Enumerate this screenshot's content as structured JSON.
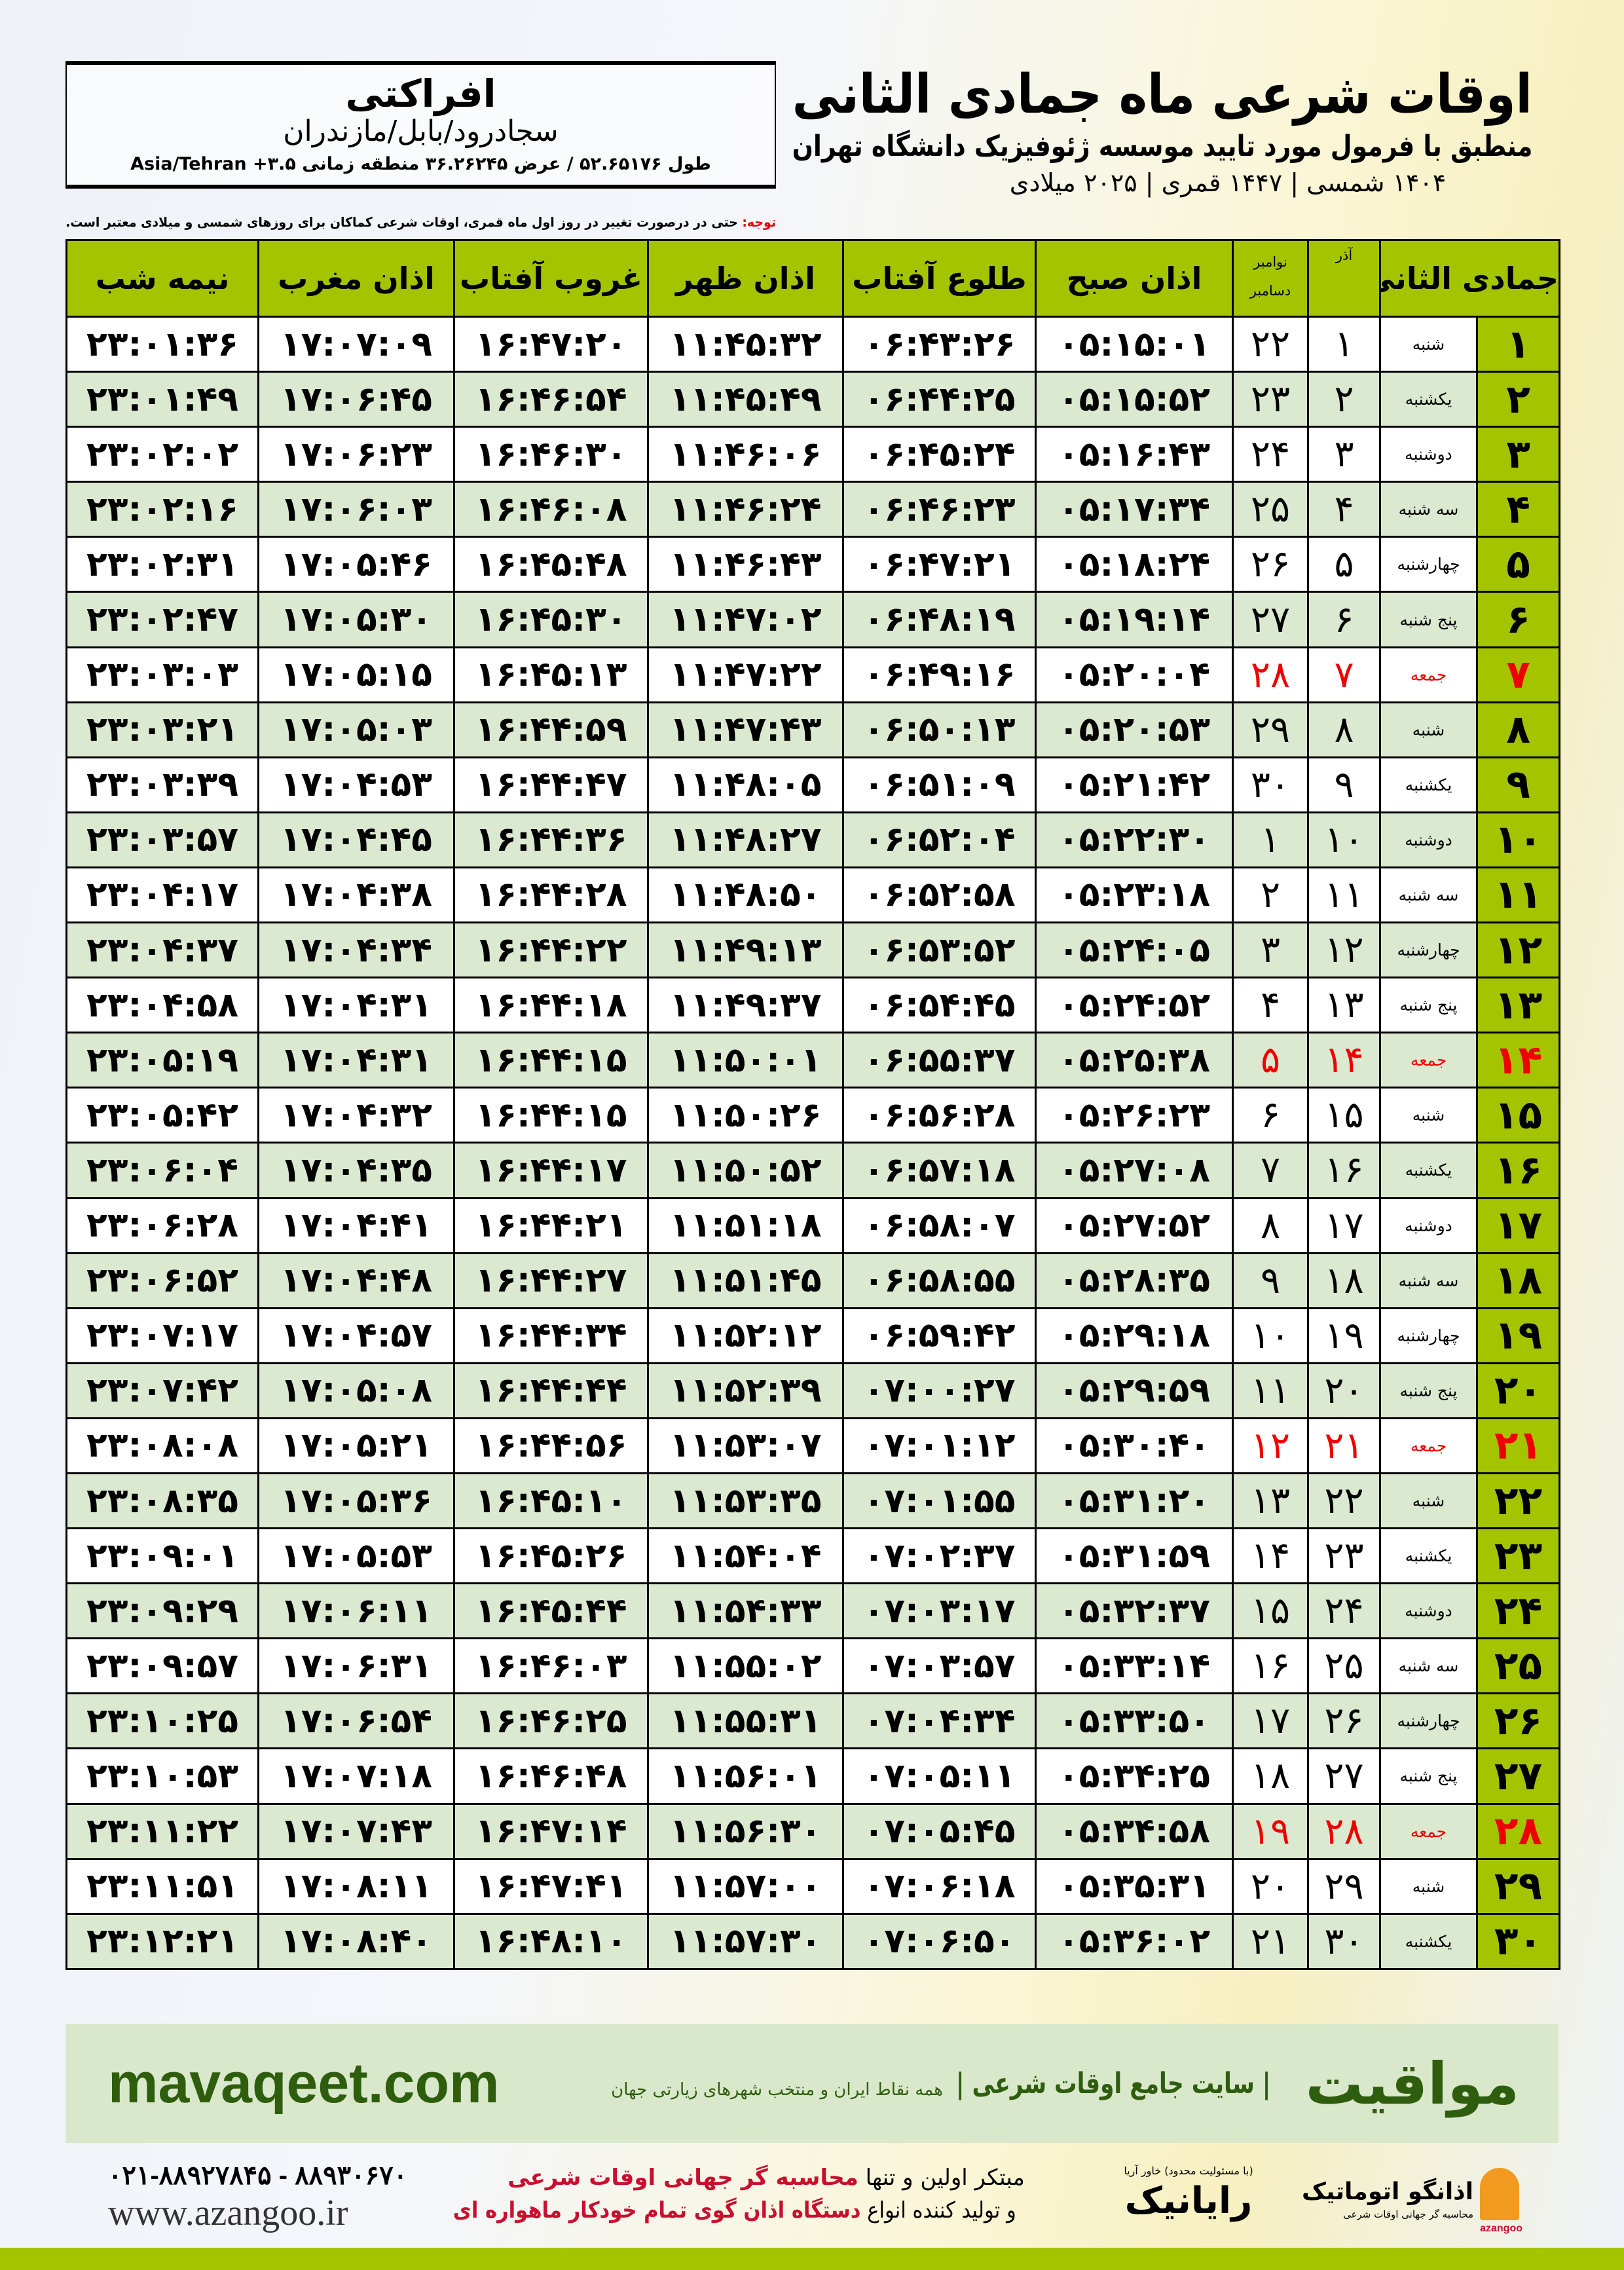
{
  "location": {
    "city": "افراکتی",
    "path": "سجادرود/بابل/مازندران",
    "coords": "طول ۵۲.۶۵۱۷۶ / عرض ۳۶.۲۶۲۴۵ منطقه زمانی ۳.۵+ Asia/Tehran"
  },
  "title": {
    "main": "اوقات شرعی ماه جمادی الثانی",
    "sub": "منطبق با فرمول مورد تایید موسسه ژئوفیزیک دانشگاه تهران",
    "years": "۱۴۰۴ شمسی | ۱۴۴۷ قمری | ۲۰۲۵ میلادی"
  },
  "note": {
    "label": "توجه:",
    "text": " حتی در درصورت تغییر در روز اول ماه قمری، اوقات شرعی کماکان برای روزهای شمسی و میلادی معتبر است."
  },
  "table": {
    "headers": {
      "day": "جمادی الثانی",
      "azar": "آذر",
      "greg": "نوامبر\nدسامبر",
      "fajr": "اذان صبح",
      "sunrise": "طلوع آفتاب",
      "dhuhr": "اذان ظهر",
      "sunset": "غروب آفتاب",
      "maghrib": "اذان مغرب",
      "midnight": "نیمه شب"
    },
    "friday_color": "#e00000",
    "header_color": "#a5c400",
    "rows": [
      [
        "۱",
        "شنبه",
        "۱",
        "۲۲",
        "۰۵:۱۵:۰۱",
        "۰۶:۴۳:۲۶",
        "۱۱:۴۵:۳۲",
        "۱۶:۴۷:۲۰",
        "۱۷:۰۷:۰۹",
        "۲۳:۰۱:۳۶"
      ],
      [
        "۲",
        "یکشنبه",
        "۲",
        "۲۳",
        "۰۵:۱۵:۵۲",
        "۰۶:۴۴:۲۵",
        "۱۱:۴۵:۴۹",
        "۱۶:۴۶:۵۴",
        "۱۷:۰۶:۴۵",
        "۲۳:۰۱:۴۹"
      ],
      [
        "۳",
        "دوشنبه",
        "۳",
        "۲۴",
        "۰۵:۱۶:۴۳",
        "۰۶:۴۵:۲۴",
        "۱۱:۴۶:۰۶",
        "۱۶:۴۶:۳۰",
        "۱۷:۰۶:۲۳",
        "۲۳:۰۲:۰۲"
      ],
      [
        "۴",
        "سه شنبه",
        "۴",
        "۲۵",
        "۰۵:۱۷:۳۴",
        "۰۶:۴۶:۲۳",
        "۱۱:۴۶:۲۴",
        "۱۶:۴۶:۰۸",
        "۱۷:۰۶:۰۳",
        "۲۳:۰۲:۱۶"
      ],
      [
        "۵",
        "چهارشنبه",
        "۵",
        "۲۶",
        "۰۵:۱۸:۲۴",
        "۰۶:۴۷:۲۱",
        "۱۱:۴۶:۴۳",
        "۱۶:۴۵:۴۸",
        "۱۷:۰۵:۴۶",
        "۲۳:۰۲:۳۱"
      ],
      [
        "۶",
        "پنج شنبه",
        "۶",
        "۲۷",
        "۰۵:۱۹:۱۴",
        "۰۶:۴۸:۱۹",
        "۱۱:۴۷:۰۲",
        "۱۶:۴۵:۳۰",
        "۱۷:۰۵:۳۰",
        "۲۳:۰۲:۴۷"
      ],
      [
        "۷",
        "جمعه",
        "۷",
        "۲۸",
        "۰۵:۲۰:۰۴",
        "۰۶:۴۹:۱۶",
        "۱۱:۴۷:۲۲",
        "۱۶:۴۵:۱۳",
        "۱۷:۰۵:۱۵",
        "۲۳:۰۳:۰۳"
      ],
      [
        "۸",
        "شنبه",
        "۸",
        "۲۹",
        "۰۵:۲۰:۵۳",
        "۰۶:۵۰:۱۳",
        "۱۱:۴۷:۴۳",
        "۱۶:۴۴:۵۹",
        "۱۷:۰۵:۰۳",
        "۲۳:۰۳:۲۱"
      ],
      [
        "۹",
        "یکشنبه",
        "۹",
        "۳۰",
        "۰۵:۲۱:۴۲",
        "۰۶:۵۱:۰۹",
        "۱۱:۴۸:۰۵",
        "۱۶:۴۴:۴۷",
        "۱۷:۰۴:۵۳",
        "۲۳:۰۳:۳۹"
      ],
      [
        "۱۰",
        "دوشنبه",
        "۱۰",
        "۱",
        "۰۵:۲۲:۳۰",
        "۰۶:۵۲:۰۴",
        "۱۱:۴۸:۲۷",
        "۱۶:۴۴:۳۶",
        "۱۷:۰۴:۴۵",
        "۲۳:۰۳:۵۷"
      ],
      [
        "۱۱",
        "سه شنبه",
        "۱۱",
        "۲",
        "۰۵:۲۳:۱۸",
        "۰۶:۵۲:۵۸",
        "۱۱:۴۸:۵۰",
        "۱۶:۴۴:۲۸",
        "۱۷:۰۴:۳۸",
        "۲۳:۰۴:۱۷"
      ],
      [
        "۱۲",
        "چهارشنبه",
        "۱۲",
        "۳",
        "۰۵:۲۴:۰۵",
        "۰۶:۵۳:۵۲",
        "۱۱:۴۹:۱۳",
        "۱۶:۴۴:۲۲",
        "۱۷:۰۴:۳۴",
        "۲۳:۰۴:۳۷"
      ],
      [
        "۱۳",
        "پنج شنبه",
        "۱۳",
        "۴",
        "۰۵:۲۴:۵۲",
        "۰۶:۵۴:۴۵",
        "۱۱:۴۹:۳۷",
        "۱۶:۴۴:۱۸",
        "۱۷:۰۴:۳۱",
        "۲۳:۰۴:۵۸"
      ],
      [
        "۱۴",
        "جمعه",
        "۱۴",
        "۵",
        "۰۵:۲۵:۳۸",
        "۰۶:۵۵:۳۷",
        "۱۱:۵۰:۰۱",
        "۱۶:۴۴:۱۵",
        "۱۷:۰۴:۳۱",
        "۲۳:۰۵:۱۹"
      ],
      [
        "۱۵",
        "شنبه",
        "۱۵",
        "۶",
        "۰۵:۲۶:۲۳",
        "۰۶:۵۶:۲۸",
        "۱۱:۵۰:۲۶",
        "۱۶:۴۴:۱۵",
        "۱۷:۰۴:۳۲",
        "۲۳:۰۵:۴۲"
      ],
      [
        "۱۶",
        "یکشنبه",
        "۱۶",
        "۷",
        "۰۵:۲۷:۰۸",
        "۰۶:۵۷:۱۸",
        "۱۱:۵۰:۵۲",
        "۱۶:۴۴:۱۷",
        "۱۷:۰۴:۳۵",
        "۲۳:۰۶:۰۴"
      ],
      [
        "۱۷",
        "دوشنبه",
        "۱۷",
        "۸",
        "۰۵:۲۷:۵۲",
        "۰۶:۵۸:۰۷",
        "۱۱:۵۱:۱۸",
        "۱۶:۴۴:۲۱",
        "۱۷:۰۴:۴۱",
        "۲۳:۰۶:۲۸"
      ],
      [
        "۱۸",
        "سه شنبه",
        "۱۸",
        "۹",
        "۰۵:۲۸:۳۵",
        "۰۶:۵۸:۵۵",
        "۱۱:۵۱:۴۵",
        "۱۶:۴۴:۲۷",
        "۱۷:۰۴:۴۸",
        "۲۳:۰۶:۵۲"
      ],
      [
        "۱۹",
        "چهارشنبه",
        "۱۹",
        "۱۰",
        "۰۵:۲۹:۱۸",
        "۰۶:۵۹:۴۲",
        "۱۱:۵۲:۱۲",
        "۱۶:۴۴:۳۴",
        "۱۷:۰۴:۵۷",
        "۲۳:۰۷:۱۷"
      ],
      [
        "۲۰",
        "پنج شنبه",
        "۲۰",
        "۱۱",
        "۰۵:۲۹:۵۹",
        "۰۷:۰۰:۲۷",
        "۱۱:۵۲:۳۹",
        "۱۶:۴۴:۴۴",
        "۱۷:۰۵:۰۸",
        "۲۳:۰۷:۴۲"
      ],
      [
        "۲۱",
        "جمعه",
        "۲۱",
        "۱۲",
        "۰۵:۳۰:۴۰",
        "۰۷:۰۱:۱۲",
        "۱۱:۵۳:۰۷",
        "۱۶:۴۴:۵۶",
        "۱۷:۰۵:۲۱",
        "۲۳:۰۸:۰۸"
      ],
      [
        "۲۲",
        "شنبه",
        "۲۲",
        "۱۳",
        "۰۵:۳۱:۲۰",
        "۰۷:۰۱:۵۵",
        "۱۱:۵۳:۳۵",
        "۱۶:۴۵:۱۰",
        "۱۷:۰۵:۳۶",
        "۲۳:۰۸:۳۵"
      ],
      [
        "۲۳",
        "یکشنبه",
        "۲۳",
        "۱۴",
        "۰۵:۳۱:۵۹",
        "۰۷:۰۲:۳۷",
        "۱۱:۵۴:۰۴",
        "۱۶:۴۵:۲۶",
        "۱۷:۰۵:۵۳",
        "۲۳:۰۹:۰۱"
      ],
      [
        "۲۴",
        "دوشنبه",
        "۲۴",
        "۱۵",
        "۰۵:۳۲:۳۷",
        "۰۷:۰۳:۱۷",
        "۱۱:۵۴:۳۳",
        "۱۶:۴۵:۴۴",
        "۱۷:۰۶:۱۱",
        "۲۳:۰۹:۲۹"
      ],
      [
        "۲۵",
        "سه شنبه",
        "۲۵",
        "۱۶",
        "۰۵:۳۳:۱۴",
        "۰۷:۰۳:۵۷",
        "۱۱:۵۵:۰۲",
        "۱۶:۴۶:۰۳",
        "۱۷:۰۶:۳۱",
        "۲۳:۰۹:۵۷"
      ],
      [
        "۲۶",
        "چهارشنبه",
        "۲۶",
        "۱۷",
        "۰۵:۳۳:۵۰",
        "۰۷:۰۴:۳۴",
        "۱۱:۵۵:۳۱",
        "۱۶:۴۶:۲۵",
        "۱۷:۰۶:۵۴",
        "۲۳:۱۰:۲۵"
      ],
      [
        "۲۷",
        "پنج شنبه",
        "۲۷",
        "۱۸",
        "۰۵:۳۴:۲۵",
        "۰۷:۰۵:۱۱",
        "۱۱:۵۶:۰۱",
        "۱۶:۴۶:۴۸",
        "۱۷:۰۷:۱۸",
        "۲۳:۱۰:۵۳"
      ],
      [
        "۲۸",
        "جمعه",
        "۲۸",
        "۱۹",
        "۰۵:۳۴:۵۸",
        "۰۷:۰۵:۴۵",
        "۱۱:۵۶:۳۰",
        "۱۶:۴۷:۱۴",
        "۱۷:۰۷:۴۳",
        "۲۳:۱۱:۲۲"
      ],
      [
        "۲۹",
        "شنبه",
        "۲۹",
        "۲۰",
        "۰۵:۳۵:۳۱",
        "۰۷:۰۶:۱۸",
        "۱۱:۵۷:۰۰",
        "۱۶:۴۷:۴۱",
        "۱۷:۰۸:۱۱",
        "۲۳:۱۱:۵۱"
      ],
      [
        "۳۰",
        "یکشنبه",
        "۳۰",
        "۲۱",
        "۰۵:۳۶:۰۲",
        "۰۷:۰۶:۵۰",
        "۱۱:۵۷:۳۰",
        "۱۶:۴۸:۱۰",
        "۱۷:۰۸:۴۰",
        "۲۳:۱۲:۲۱"
      ]
    ]
  },
  "footer": {
    "brand": "مواقیت",
    "tagline": "| سایت جامع اوقات شرعی |",
    "sub": "همه نقاط ایران و منتخب شهرهای زیارتی جهان",
    "site": "mavaqeet.com"
  },
  "bottom": {
    "phone": "۰۲۱-۸۸۹۲۷۸۴۵ - ۸۸۹۳۰۶۷۰",
    "web": "www.azangoo.ir",
    "promo1a": "مبتکر اولین و تنها ",
    "promo1b": "محاسبه گر جهانی اوقات شرعی",
    "promo2a": "و تولید کننده انواع ",
    "promo2b": "دستگاه اذان گوی تمام خودکار ماهواره ای",
    "rayanik": "رایانیک",
    "rayanik_small": "(با مسئولیت محدود) خاور آریا",
    "azangoo": "اذانگو اتوماتیک",
    "azangoo_sub": "محاسبه گر جهانی اوقات شرعی",
    "azangoo_en": "azangoo"
  }
}
